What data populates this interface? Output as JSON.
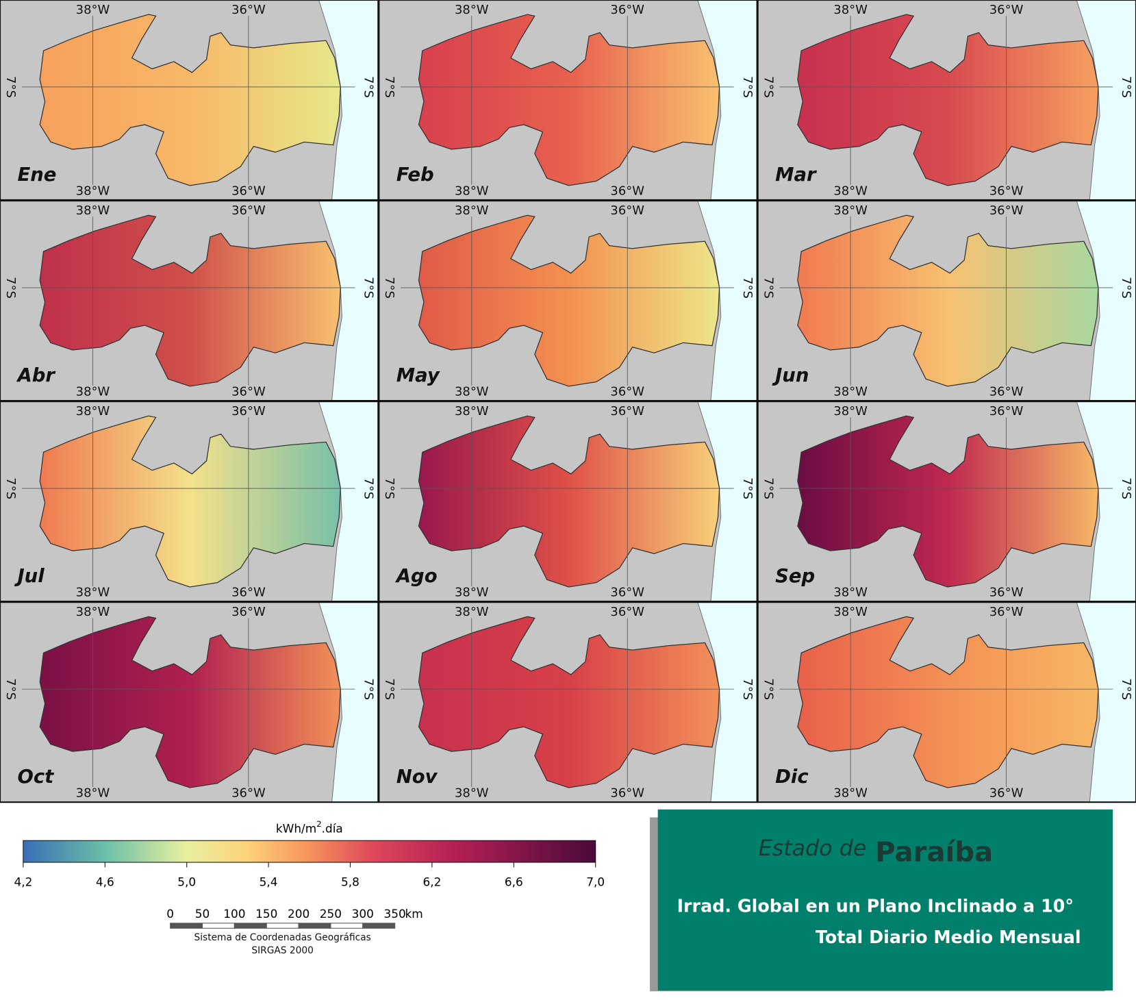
{
  "panels": [
    {
      "month": "Ene",
      "colors": [
        "#f6a05c",
        "#f8b868",
        "#e6e88a"
      ]
    },
    {
      "month": "Feb",
      "colors": [
        "#d8404e",
        "#e8604e",
        "#f8c070"
      ]
    },
    {
      "month": "Mar",
      "colors": [
        "#c83050",
        "#d84a50",
        "#f7a060"
      ]
    },
    {
      "month": "Abr",
      "colors": [
        "#c0304c",
        "#d0504a",
        "#f8c070"
      ]
    },
    {
      "month": "May",
      "colors": [
        "#e05a48",
        "#f49050",
        "#eee68a"
      ]
    },
    {
      "month": "Jun",
      "colors": [
        "#f07a50",
        "#f8c070",
        "#a8d8a0"
      ]
    },
    {
      "month": "Jul",
      "colors": [
        "#f07a50",
        "#f4e08a",
        "#78c0a8"
      ]
    },
    {
      "month": "Ago",
      "colors": [
        "#98184c",
        "#e05048",
        "#f7d07a"
      ]
    },
    {
      "month": "Sep",
      "colors": [
        "#6a0c42",
        "#c02850",
        "#f6b868"
      ]
    },
    {
      "month": "Oct",
      "colors": [
        "#7a1045",
        "#b02050",
        "#f29058"
      ]
    },
    {
      "month": "Nov",
      "colors": [
        "#c83050",
        "#d84048",
        "#f29058"
      ]
    },
    {
      "month": "Dic",
      "colors": [
        "#e8604a",
        "#f49055",
        "#f7b865"
      ]
    }
  ],
  "axes": {
    "lon": [
      "38°W",
      "36°W"
    ],
    "lat": "7°S"
  },
  "colorbar": {
    "unit": {
      "base": "kWh/m",
      "sup": "2",
      "rest": ".día"
    },
    "range": [
      4.2,
      7.0
    ],
    "ticks": [
      {
        "value": 4.2,
        "label": "4,2"
      },
      {
        "value": 4.6,
        "label": "4,6"
      },
      {
        "value": 5.0,
        "label": "5,0"
      },
      {
        "value": 5.4,
        "label": "5,4"
      },
      {
        "value": 5.8,
        "label": "5,8"
      },
      {
        "value": 6.2,
        "label": "6,2"
      },
      {
        "value": 6.6,
        "label": "6,6"
      },
      {
        "value": 7.0,
        "label": "7,0"
      }
    ],
    "stops": [
      {
        "value": 4.2,
        "color": "#3b6fb6"
      },
      {
        "value": 4.6,
        "color": "#6bbfa8"
      },
      {
        "value": 5.0,
        "color": "#e8f0a0"
      },
      {
        "value": 5.3,
        "color": "#fdd17a"
      },
      {
        "value": 5.6,
        "color": "#f5935c"
      },
      {
        "value": 5.9,
        "color": "#e04a5a"
      },
      {
        "value": 6.3,
        "color": "#b52055"
      },
      {
        "value": 7.0,
        "color": "#4a0a3a"
      }
    ]
  },
  "scalebar": {
    "ticks": [
      0,
      50,
      100,
      150,
      200,
      250,
      300,
      350
    ],
    "unit": "km"
  },
  "crs": [
    "Sistema de Coordenadas Geográficas",
    "SIRGAS 2000"
  ],
  "title": {
    "prefix": "Estado de",
    "state": "Paraíba",
    "lines": [
      "Irrad. Global en un Plano Inclinado a 10°",
      "Total Diario Medio Mensual"
    ]
  }
}
